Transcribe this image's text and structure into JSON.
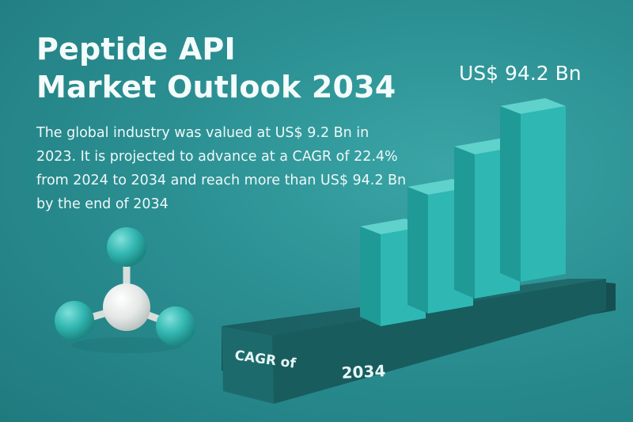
{
  "title": {
    "line1": "Peptide API",
    "line2": "Market Outlook 2034"
  },
  "description": "The global industry was valued at US$ 9.2 Bn in 2023. It is projected to advance at a CAGR of 22.4% from 2024 to 2034 and reach more than US$ 94.2 Bn by the end of 2034",
  "headline_value": "US$ 94.2 Bn",
  "platform": {
    "left_label": "CAGR of",
    "right_label": "2034"
  },
  "colors": {
    "background": "#2b8f92",
    "bar_front": "#2fb8b3",
    "bar_side": "#1f9a96",
    "bar_top": "#5fd2cc",
    "platform": "#1c6466",
    "molecule_teal": "#33b6b1",
    "molecule_center": "#e9ecea"
  },
  "icons": [
    "molecule-icon"
  ]
}
